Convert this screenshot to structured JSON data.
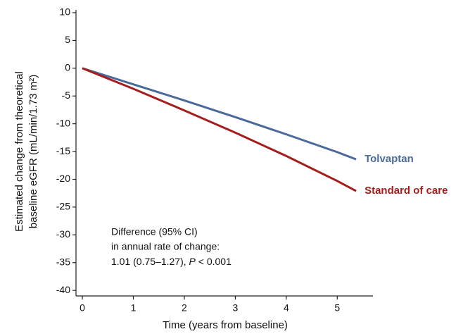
{
  "chart_data": {
    "type": "line",
    "ylabel": [
      "Estimated change from theoretical",
      "baseline eGFR (mL/min/1.73 m²)"
    ],
    "xlabel": "Time (years from baseline)",
    "x": [
      0,
      1,
      2,
      3,
      4,
      5,
      5.37
    ],
    "series": [
      {
        "name": "Tolvaptan",
        "color": "#4a6a9a",
        "values": [
          0,
          -2.9,
          -5.8,
          -8.8,
          -11.9,
          -15.1,
          -16.4
        ]
      },
      {
        "name": "Standard of care",
        "color": "#a51d1d",
        "values": [
          0,
          -3.7,
          -7.6,
          -11.6,
          -15.8,
          -20.3,
          -22.1
        ]
      }
    ],
    "xlim": [
      -0.125,
      5.7
    ],
    "xticks": [
      0,
      1,
      2,
      3,
      4,
      5
    ],
    "ylim": [
      -41,
      10
    ],
    "yticks": [
      10,
      5,
      0,
      -5,
      -10,
      -15,
      -20,
      -25,
      -30,
      -35,
      -40
    ],
    "annotation": [
      "Difference (95% CI)",
      "in annual rate of change:",
      [
        "1.01 (0.75–1.27), ",
        "P",
        " < 0.001"
      ]
    ]
  }
}
